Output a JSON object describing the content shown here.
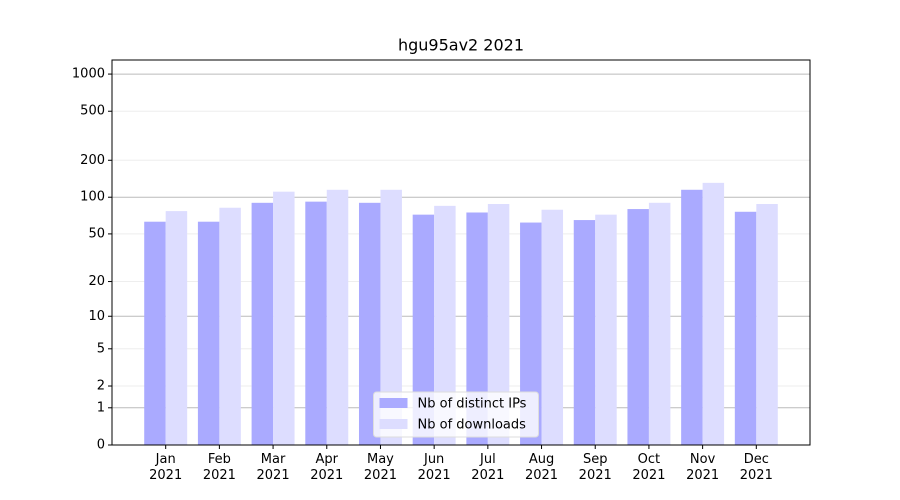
{
  "chart_data": {
    "type": "bar",
    "title": "hgu95av2 2021",
    "categories": [
      "Jan\n2021",
      "Feb\n2021",
      "Mar\n2021",
      "Apr\n2021",
      "May\n2021",
      "Jun\n2021",
      "Jul\n2021",
      "Aug\n2021",
      "Sep\n2021",
      "Oct\n2021",
      "Nov\n2021",
      "Dec\n2021"
    ],
    "series": [
      {
        "name": "Nb of distinct IPs",
        "color": "#aaaaff",
        "values": [
          63,
          63,
          90,
          92,
          90,
          72,
          75,
          62,
          65,
          80,
          115,
          76
        ]
      },
      {
        "name": "Nb of downloads",
        "color": "#ddddff",
        "values": [
          77,
          82,
          111,
          115,
          115,
          85,
          88,
          79,
          72,
          90,
          131,
          88
        ]
      }
    ],
    "yscale": "log1p",
    "ylim": [
      0,
      1300
    ],
    "yticks": [
      0,
      1,
      2,
      5,
      10,
      20,
      50,
      100,
      200,
      500,
      1000
    ],
    "grid": true,
    "legend": "lower center"
  }
}
